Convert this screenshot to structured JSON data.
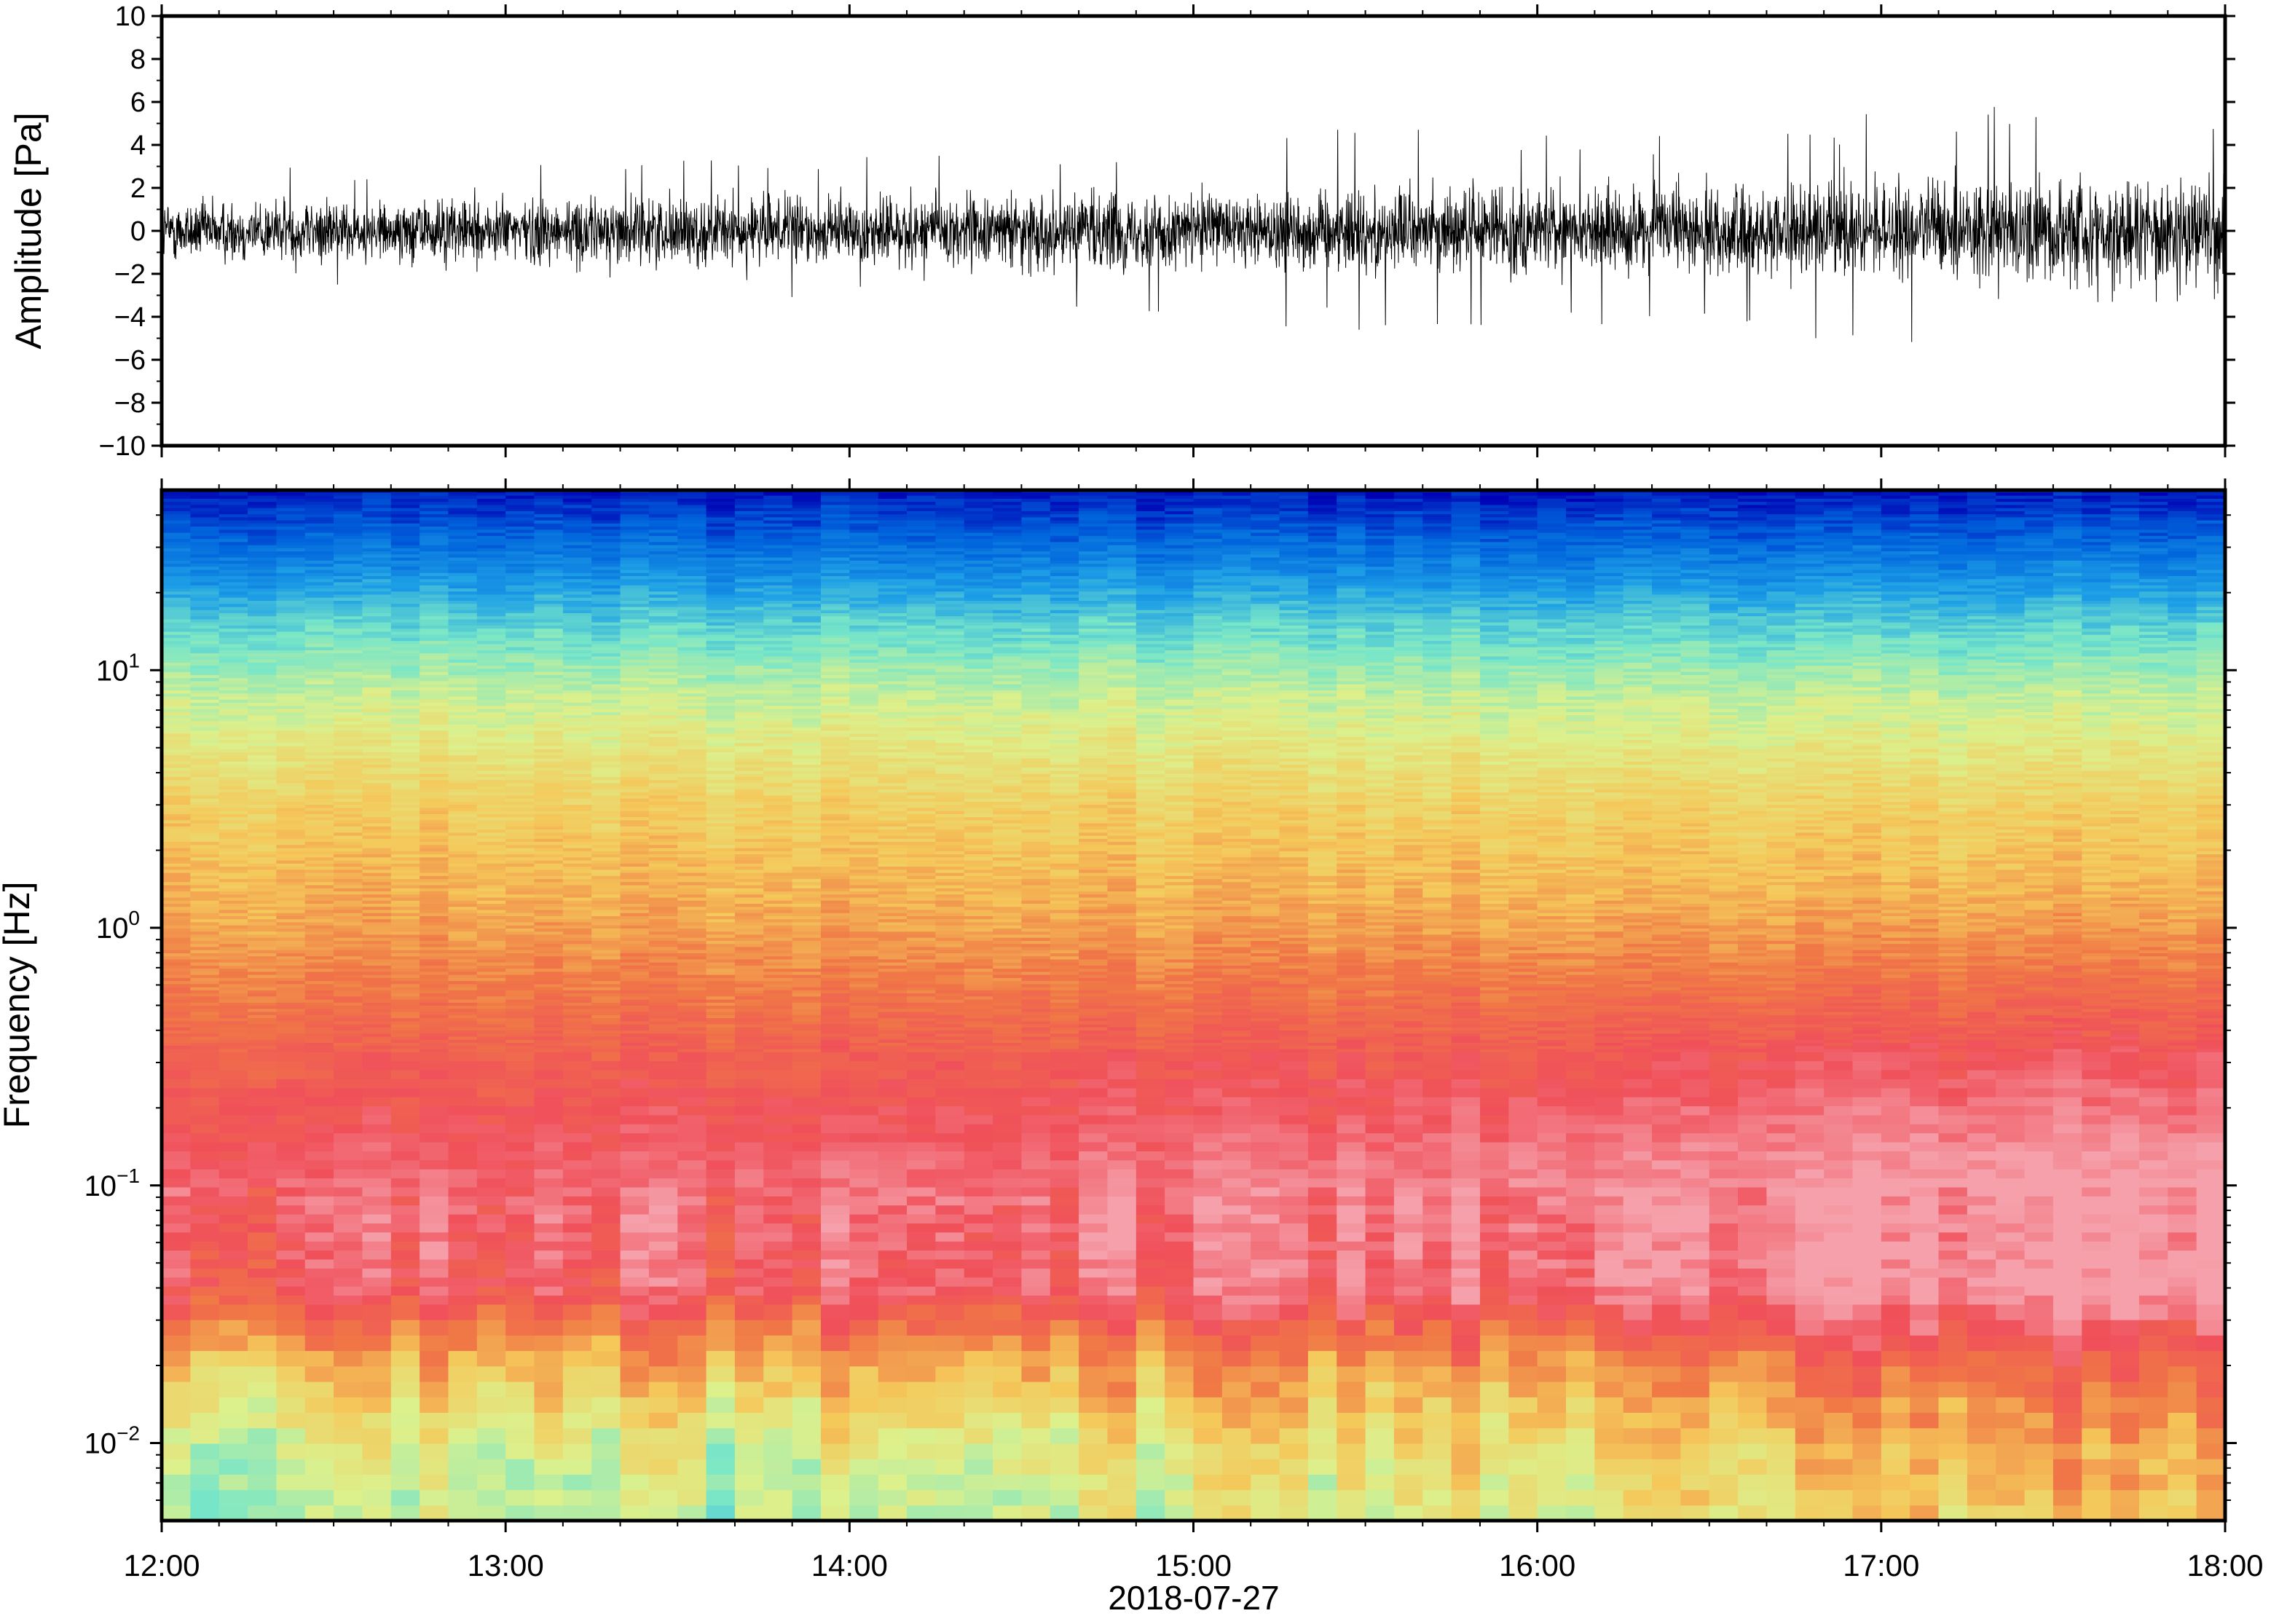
{
  "chart_data": [
    {
      "type": "line",
      "ylabel": "Amplitude [Pa]",
      "ylim": [
        -10,
        10
      ],
      "yticks": [
        -10,
        -8,
        -6,
        -4,
        -2,
        0,
        2,
        4,
        6,
        8,
        10
      ],
      "ytick_labels": [
        "−10",
        "−8",
        "−6",
        "−4",
        "−2",
        "0",
        "2",
        "4",
        "6",
        "8",
        "10"
      ],
      "xlim": [
        "2018-07-27 12:00",
        "2018-07-27 18:00"
      ],
      "grid": false,
      "envelope": {
        "x": [
          "12:00",
          "12:30",
          "13:00",
          "13:30",
          "14:00",
          "14:30",
          "15:00",
          "15:30",
          "16:00",
          "16:30",
          "17:00",
          "17:30",
          "18:00"
        ],
        "typical_amplitude": [
          1.5,
          1.6,
          1.6,
          1.7,
          1.7,
          1.9,
          1.9,
          2.0,
          2.0,
          2.1,
          2.3,
          2.7,
          2.6
        ],
        "peak_amplitude": [
          3.0,
          3.0,
          3.1,
          3.3,
          3.4,
          3.9,
          4.5,
          4.8,
          4.9,
          4.6,
          5.6,
          6.6,
          6.0
        ]
      },
      "color": "#000000"
    },
    {
      "type": "heatmap",
      "ylabel": "Frequency [Hz]",
      "xlabel": "2018‑07‑27",
      "yscale": "log",
      "ylim": [
        0.005,
        50
      ],
      "yticks": [
        0.01,
        0.1,
        1,
        10
      ],
      "ytick_labels": [
        {
          "base": "10",
          "exp": "−2"
        },
        {
          "base": "10",
          "exp": "−1"
        },
        {
          "base": "10",
          "exp": "0"
        },
        {
          "base": "10",
          "exp": "1"
        }
      ],
      "xlim": [
        "12:00",
        "18:00"
      ],
      "xtick_labels": [
        "12:00",
        "13:00",
        "14:00",
        "15:00",
        "16:00",
        "17:00",
        "18:00"
      ],
      "colormap": [
        "#0000b4",
        "#0064dc",
        "#1ea0e6",
        "#78e6c8",
        "#dcf08c",
        "#f5c85a",
        "#f07846",
        "#f0505a",
        "#f5a0aa"
      ],
      "frequency_profile": [
        {
          "freq": 0.005,
          "level": 0.42
        },
        {
          "freq": 0.01,
          "level": 0.47
        },
        {
          "freq": 0.02,
          "level": 0.62
        },
        {
          "freq": 0.04,
          "level": 0.86
        },
        {
          "freq": 0.1,
          "level": 0.9
        },
        {
          "freq": 0.3,
          "level": 0.82
        },
        {
          "freq": 1,
          "level": 0.68
        },
        {
          "freq": 3,
          "level": 0.6
        },
        {
          "freq": 8,
          "level": 0.47
        },
        {
          "freq": 15,
          "level": 0.34
        },
        {
          "freq": 25,
          "level": 0.2
        },
        {
          "freq": 40,
          "level": 0.08
        },
        {
          "freq": 50,
          "level": 0.03
        }
      ],
      "time_trend": {
        "x": [
          "12:00",
          "14:00",
          "16:00",
          "17:00",
          "18:00"
        ],
        "low_freq_boost": [
          0.0,
          0.04,
          0.12,
          0.2,
          0.22
        ]
      }
    }
  ]
}
